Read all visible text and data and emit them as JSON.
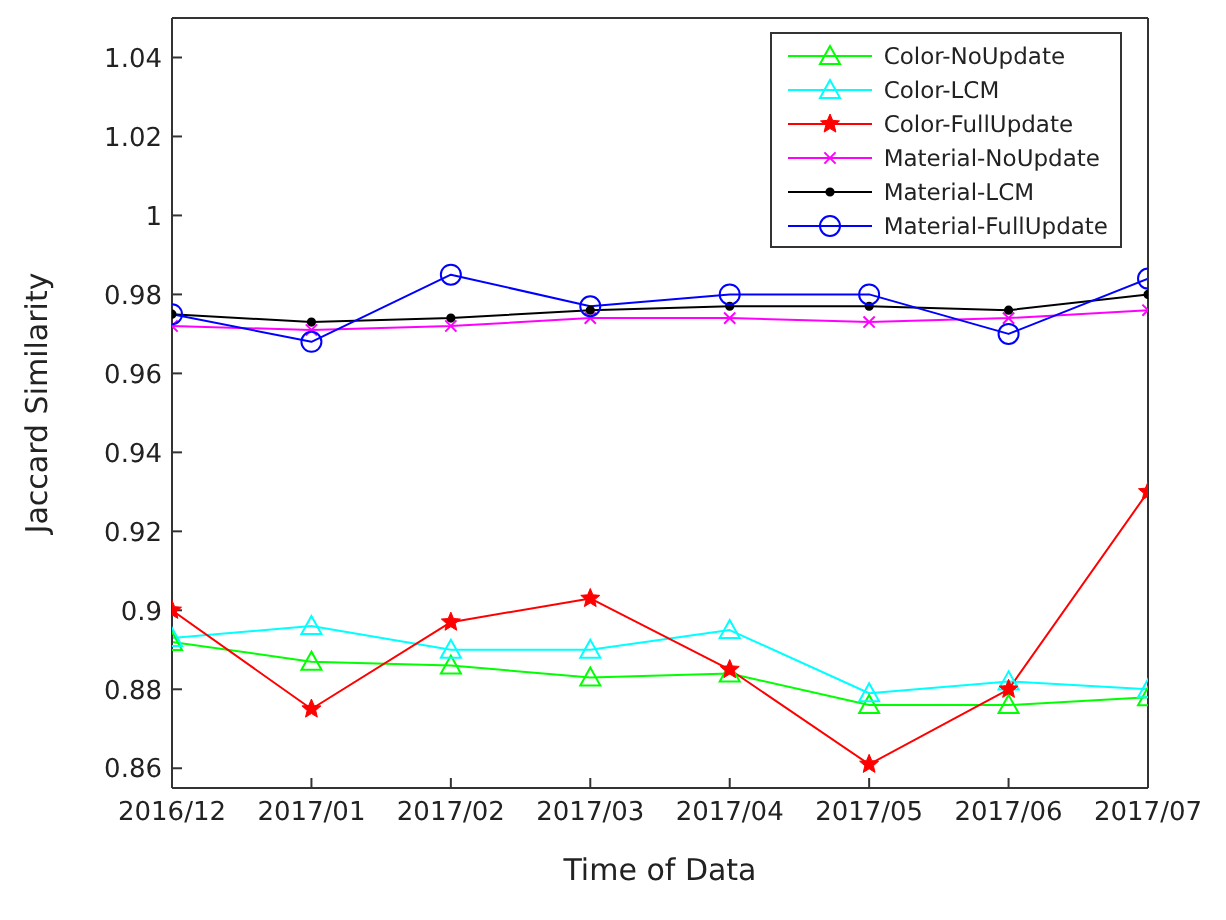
{
  "chart_data": {
    "type": "line",
    "xlabel": "Time of Data",
    "ylabel": "Jaccard Similarity",
    "categories": [
      "2016/12",
      "2017/01",
      "2017/02",
      "2017/03",
      "2017/04",
      "2017/05",
      "2017/06",
      "2017/07"
    ],
    "ylim": [
      0.855,
      1.05
    ],
    "yticks": [
      0.86,
      0.88,
      0.9,
      0.92,
      0.94,
      0.96,
      0.98,
      1,
      1.02,
      1.04
    ],
    "grid": false,
    "legend": "top right",
    "series": [
      {
        "name": "Color-NoUpdate",
        "color": "#00ff00",
        "marker": "triangle",
        "values": [
          0.892,
          0.887,
          0.886,
          0.883,
          0.884,
          0.876,
          0.876,
          0.878
        ]
      },
      {
        "name": "Color-LCM",
        "color": "#00ffff",
        "marker": "triangle",
        "values": [
          0.893,
          0.896,
          0.89,
          0.89,
          0.895,
          0.879,
          0.882,
          0.88
        ]
      },
      {
        "name": "Color-FullUpdate",
        "color": "#ff0000",
        "marker": "star",
        "values": [
          0.9,
          0.875,
          0.897,
          0.903,
          0.885,
          0.861,
          0.88,
          0.93
        ]
      },
      {
        "name": "Material-NoUpdate",
        "color": "#ff00ff",
        "marker": "cross",
        "values": [
          0.972,
          0.971,
          0.972,
          0.974,
          0.974,
          0.973,
          0.974,
          0.976
        ]
      },
      {
        "name": "Material-LCM",
        "color": "#000000",
        "marker": "circle",
        "values": [
          0.975,
          0.973,
          0.974,
          0.976,
          0.977,
          0.977,
          0.976,
          0.98
        ]
      },
      {
        "name": "Material-FullUpdate",
        "color": "#0000ff",
        "marker": "circle",
        "values": [
          0.975,
          0.968,
          0.985,
          0.977,
          0.98,
          0.98,
          0.97,
          0.984
        ]
      }
    ]
  }
}
